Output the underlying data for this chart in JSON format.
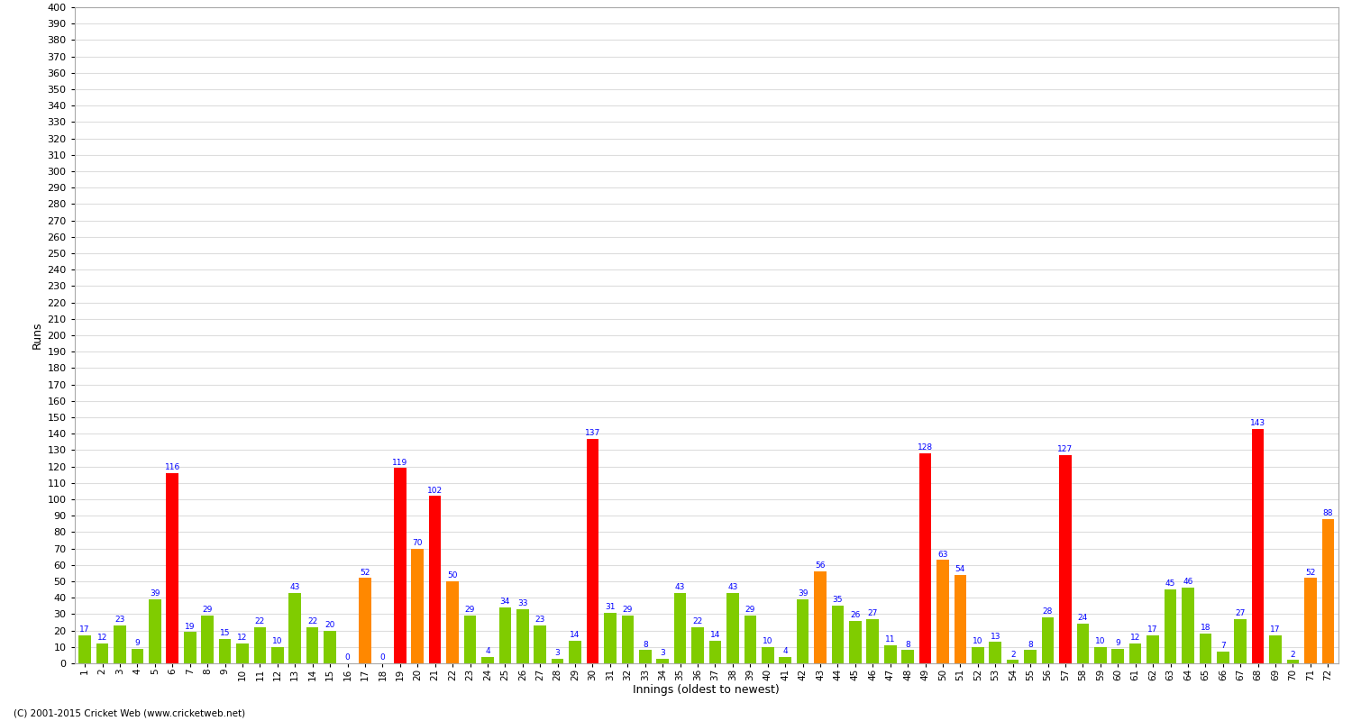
{
  "xlabel": "Innings (oldest to newest)",
  "ylabel": "Runs",
  "fig_bg": "#ffffff",
  "plot_bg": "#ffffff",
  "grid_color": "#dddddd",
  "bar_color_green": "#80cc00",
  "bar_color_red": "#ff0000",
  "bar_color_orange": "#ff8800",
  "innings_data": [
    [
      1,
      17
    ],
    [
      2,
      12
    ],
    [
      3,
      23
    ],
    [
      4,
      9
    ],
    [
      5,
      39
    ],
    [
      6,
      116
    ],
    [
      7,
      19
    ],
    [
      8,
      29
    ],
    [
      9,
      15
    ],
    [
      10,
      12
    ],
    [
      11,
      22
    ],
    [
      12,
      10
    ],
    [
      13,
      43
    ],
    [
      14,
      22
    ],
    [
      15,
      20
    ],
    [
      16,
      0
    ],
    [
      17,
      52
    ],
    [
      18,
      0
    ],
    [
      19,
      119
    ],
    [
      20,
      70
    ],
    [
      21,
      102
    ],
    [
      22,
      50
    ],
    [
      23,
      29
    ],
    [
      24,
      4
    ],
    [
      25,
      34
    ],
    [
      26,
      33
    ],
    [
      27,
      23
    ],
    [
      28,
      3
    ],
    [
      29,
      14
    ],
    [
      30,
      137
    ],
    [
      31,
      31
    ],
    [
      32,
      29
    ],
    [
      33,
      8
    ],
    [
      34,
      3
    ],
    [
      35,
      43
    ],
    [
      36,
      22
    ],
    [
      37,
      14
    ],
    [
      38,
      43
    ],
    [
      39,
      29
    ],
    [
      40,
      10
    ],
    [
      41,
      4
    ],
    [
      42,
      39
    ],
    [
      43,
      56
    ],
    [
      44,
      35
    ],
    [
      45,
      26
    ],
    [
      46,
      27
    ],
    [
      47,
      11
    ],
    [
      48,
      8
    ],
    [
      49,
      128
    ],
    [
      50,
      63
    ],
    [
      51,
      54
    ],
    [
      52,
      10
    ],
    [
      53,
      13
    ],
    [
      54,
      2
    ],
    [
      55,
      8
    ],
    [
      56,
      28
    ],
    [
      57,
      127
    ],
    [
      58,
      24
    ],
    [
      59,
      10
    ],
    [
      60,
      9
    ],
    [
      61,
      12
    ],
    [
      62,
      17
    ],
    [
      63,
      45
    ],
    [
      64,
      46
    ],
    [
      65,
      18
    ],
    [
      66,
      7
    ],
    [
      67,
      27
    ],
    [
      68,
      143
    ],
    [
      69,
      17
    ],
    [
      70,
      2
    ],
    [
      71,
      52
    ],
    [
      72,
      88
    ]
  ],
  "ylim": [
    0,
    400
  ],
  "footer": "(C) 2001-2015 Cricket Web (www.cricketweb.net)"
}
